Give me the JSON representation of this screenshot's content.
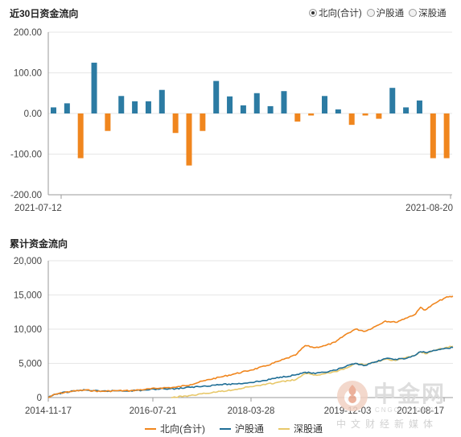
{
  "header": {
    "title": "近30日资金流向",
    "radios": [
      {
        "label": "北向(合计)",
        "checked": true
      },
      {
        "label": "沪股通",
        "checked": false
      },
      {
        "label": "深股通",
        "checked": false
      }
    ]
  },
  "cumulative": {
    "title": "累计资金流向"
  },
  "colors": {
    "positive": "#2c7ba3",
    "negative": "#f0861e",
    "north": "#f0861e",
    "sh": "#1f6e96",
    "sz": "#e8c86a",
    "grid": "#e6e6e6",
    "axis": "#9a9a9a"
  },
  "chart_data": [
    {
      "type": "bar",
      "title": "近30日资金流向",
      "ylim": [
        -200,
        200
      ],
      "ytick_labels": [
        "200.00",
        "100.00",
        "0.00",
        "-100.00",
        "-200.00"
      ],
      "yticks": [
        200,
        100,
        0,
        -100,
        -200
      ],
      "xtick_labels": [
        "2021-07-12",
        "2021-08-20"
      ],
      "values": [
        15,
        25,
        -110,
        125,
        -43,
        43,
        30,
        30,
        58,
        -48,
        -128,
        -43,
        80,
        42,
        20,
        50,
        18,
        55,
        -20,
        -5,
        43,
        10,
        -28,
        -5,
        -13,
        63,
        15,
        32,
        -110,
        -110
      ]
    },
    {
      "type": "line",
      "title": "累计资金流向",
      "ylim": [
        0,
        20000
      ],
      "yticks": [
        0,
        5000,
        10000,
        15000,
        20000
      ],
      "ytick_labels": [
        "0",
        "5,000",
        "10,000",
        "15,000",
        "20,000"
      ],
      "xtick_labels": [
        "2014-11-17",
        "2016-07-21",
        "2018-03-28",
        "2019-12-03",
        "2021-08-17"
      ],
      "x_range": [
        "2014-11-17",
        "2021-08-17"
      ],
      "series": [
        {
          "name": "北向(合计)",
          "x": [
            "2014-11-17",
            "2015-01-01",
            "2015-04-01",
            "2015-07-01",
            "2015-10-01",
            "2016-01-01",
            "2016-04-01",
            "2016-07-01",
            "2016-10-01",
            "2017-01-01",
            "2017-04-01",
            "2017-07-01",
            "2017-10-01",
            "2018-01-01",
            "2018-04-01",
            "2018-07-01",
            "2018-10-01",
            "2019-01-01",
            "2019-03-01",
            "2019-05-01",
            "2019-07-01",
            "2019-09-01",
            "2019-11-01",
            "2020-01-01",
            "2020-03-01",
            "2020-05-01",
            "2020-07-01",
            "2020-09-01",
            "2020-11-01",
            "2021-01-01",
            "2021-02-01",
            "2021-03-01",
            "2021-05-01",
            "2021-07-01",
            "2021-08-17"
          ],
          "values": [
            0,
            500,
            900,
            1100,
            900,
            1000,
            1000,
            1200,
            1400,
            1500,
            1900,
            2500,
            3000,
            3500,
            4000,
            4600,
            5400,
            6200,
            7600,
            7300,
            7600,
            8100,
            9200,
            10000,
            9700,
            10400,
            11200,
            11000,
            11600,
            12200,
            13200,
            12800,
            13800,
            14600,
            14800
          ]
        },
        {
          "name": "沪股通",
          "x": [
            "2014-11-17",
            "2015-01-01",
            "2015-04-01",
            "2015-07-01",
            "2015-10-01",
            "2016-01-01",
            "2016-04-01",
            "2016-07-01",
            "2016-10-01",
            "2017-01-01",
            "2017-04-01",
            "2017-07-01",
            "2017-10-01",
            "2018-01-01",
            "2018-04-01",
            "2018-07-01",
            "2018-10-01",
            "2019-01-01",
            "2019-03-01",
            "2019-05-01",
            "2019-07-01",
            "2019-09-01",
            "2019-11-01",
            "2020-01-01",
            "2020-03-01",
            "2020-05-01",
            "2020-07-01",
            "2020-09-01",
            "2020-11-01",
            "2021-01-01",
            "2021-02-01",
            "2021-03-01",
            "2021-05-01",
            "2021-07-01",
            "2021-08-17"
          ],
          "values": [
            0,
            500,
            900,
            1100,
            900,
            1000,
            1000,
            1100,
            1300,
            1300,
            1500,
            1700,
            1900,
            2000,
            2200,
            2500,
            3000,
            3300,
            3700,
            3500,
            3700,
            4000,
            4500,
            5000,
            4700,
            5200,
            5700,
            5600,
            5700,
            6200,
            6700,
            6600,
            6900,
            7200,
            7300
          ]
        },
        {
          "name": "深股通",
          "x": [
            "2016-12-05",
            "2017-04-01",
            "2017-07-01",
            "2017-10-01",
            "2018-01-01",
            "2018-04-01",
            "2018-07-01",
            "2018-10-01",
            "2019-01-01",
            "2019-03-01",
            "2019-05-01",
            "2019-07-01",
            "2019-09-01",
            "2019-11-01",
            "2020-01-01",
            "2020-03-01",
            "2020-05-01",
            "2020-07-01",
            "2020-09-01",
            "2020-11-01",
            "2021-01-01",
            "2021-02-01",
            "2021-03-01",
            "2021-05-01",
            "2021-07-01",
            "2021-08-17"
          ],
          "values": [
            0,
            300,
            600,
            900,
            1200,
            1600,
            1900,
            2300,
            2600,
            3500,
            3300,
            3500,
            3800,
            4300,
            5000,
            4800,
            5200,
            5600,
            5400,
            5800,
            6200,
            6700,
            6400,
            6900,
            7300,
            7500
          ]
        }
      ]
    }
  ]
}
